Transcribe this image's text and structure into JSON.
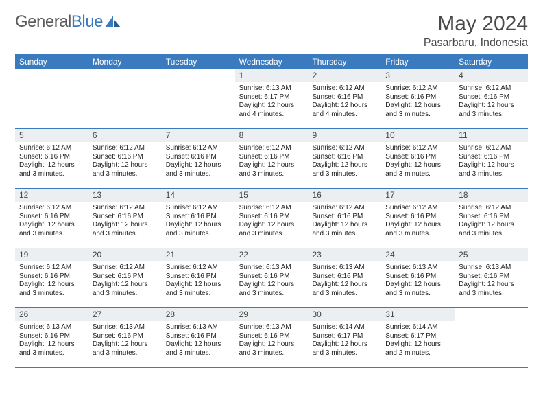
{
  "brand": {
    "textGray": "General",
    "textBlue": "Blue"
  },
  "colors": {
    "header_bg": "#3a7bbf",
    "daynum_bg": "#eceff1"
  },
  "title": "May 2024",
  "location": "Pasarbaru, Indonesia",
  "dow": [
    "Sunday",
    "Monday",
    "Tuesday",
    "Wednesday",
    "Thursday",
    "Friday",
    "Saturday"
  ],
  "weeks": [
    [
      {
        "n": "",
        "t": "",
        "empty": true
      },
      {
        "n": "",
        "t": "",
        "empty": true
      },
      {
        "n": "",
        "t": "",
        "empty": true
      },
      {
        "n": "1",
        "t": "Sunrise: 6:13 AM\nSunset: 6:17 PM\nDaylight: 12 hours and 4 minutes."
      },
      {
        "n": "2",
        "t": "Sunrise: 6:12 AM\nSunset: 6:16 PM\nDaylight: 12 hours and 4 minutes."
      },
      {
        "n": "3",
        "t": "Sunrise: 6:12 AM\nSunset: 6:16 PM\nDaylight: 12 hours and 3 minutes."
      },
      {
        "n": "4",
        "t": "Sunrise: 6:12 AM\nSunset: 6:16 PM\nDaylight: 12 hours and 3 minutes."
      }
    ],
    [
      {
        "n": "5",
        "t": "Sunrise: 6:12 AM\nSunset: 6:16 PM\nDaylight: 12 hours and 3 minutes."
      },
      {
        "n": "6",
        "t": "Sunrise: 6:12 AM\nSunset: 6:16 PM\nDaylight: 12 hours and 3 minutes."
      },
      {
        "n": "7",
        "t": "Sunrise: 6:12 AM\nSunset: 6:16 PM\nDaylight: 12 hours and 3 minutes."
      },
      {
        "n": "8",
        "t": "Sunrise: 6:12 AM\nSunset: 6:16 PM\nDaylight: 12 hours and 3 minutes."
      },
      {
        "n": "9",
        "t": "Sunrise: 6:12 AM\nSunset: 6:16 PM\nDaylight: 12 hours and 3 minutes."
      },
      {
        "n": "10",
        "t": "Sunrise: 6:12 AM\nSunset: 6:16 PM\nDaylight: 12 hours and 3 minutes."
      },
      {
        "n": "11",
        "t": "Sunrise: 6:12 AM\nSunset: 6:16 PM\nDaylight: 12 hours and 3 minutes."
      }
    ],
    [
      {
        "n": "12",
        "t": "Sunrise: 6:12 AM\nSunset: 6:16 PM\nDaylight: 12 hours and 3 minutes."
      },
      {
        "n": "13",
        "t": "Sunrise: 6:12 AM\nSunset: 6:16 PM\nDaylight: 12 hours and 3 minutes."
      },
      {
        "n": "14",
        "t": "Sunrise: 6:12 AM\nSunset: 6:16 PM\nDaylight: 12 hours and 3 minutes."
      },
      {
        "n": "15",
        "t": "Sunrise: 6:12 AM\nSunset: 6:16 PM\nDaylight: 12 hours and 3 minutes."
      },
      {
        "n": "16",
        "t": "Sunrise: 6:12 AM\nSunset: 6:16 PM\nDaylight: 12 hours and 3 minutes."
      },
      {
        "n": "17",
        "t": "Sunrise: 6:12 AM\nSunset: 6:16 PM\nDaylight: 12 hours and 3 minutes."
      },
      {
        "n": "18",
        "t": "Sunrise: 6:12 AM\nSunset: 6:16 PM\nDaylight: 12 hours and 3 minutes."
      }
    ],
    [
      {
        "n": "19",
        "t": "Sunrise: 6:12 AM\nSunset: 6:16 PM\nDaylight: 12 hours and 3 minutes."
      },
      {
        "n": "20",
        "t": "Sunrise: 6:12 AM\nSunset: 6:16 PM\nDaylight: 12 hours and 3 minutes."
      },
      {
        "n": "21",
        "t": "Sunrise: 6:12 AM\nSunset: 6:16 PM\nDaylight: 12 hours and 3 minutes."
      },
      {
        "n": "22",
        "t": "Sunrise: 6:13 AM\nSunset: 6:16 PM\nDaylight: 12 hours and 3 minutes."
      },
      {
        "n": "23",
        "t": "Sunrise: 6:13 AM\nSunset: 6:16 PM\nDaylight: 12 hours and 3 minutes."
      },
      {
        "n": "24",
        "t": "Sunrise: 6:13 AM\nSunset: 6:16 PM\nDaylight: 12 hours and 3 minutes."
      },
      {
        "n": "25",
        "t": "Sunrise: 6:13 AM\nSunset: 6:16 PM\nDaylight: 12 hours and 3 minutes."
      }
    ],
    [
      {
        "n": "26",
        "t": "Sunrise: 6:13 AM\nSunset: 6:16 PM\nDaylight: 12 hours and 3 minutes."
      },
      {
        "n": "27",
        "t": "Sunrise: 6:13 AM\nSunset: 6:16 PM\nDaylight: 12 hours and 3 minutes."
      },
      {
        "n": "28",
        "t": "Sunrise: 6:13 AM\nSunset: 6:16 PM\nDaylight: 12 hours and 3 minutes."
      },
      {
        "n": "29",
        "t": "Sunrise: 6:13 AM\nSunset: 6:16 PM\nDaylight: 12 hours and 3 minutes."
      },
      {
        "n": "30",
        "t": "Sunrise: 6:14 AM\nSunset: 6:17 PM\nDaylight: 12 hours and 3 minutes."
      },
      {
        "n": "31",
        "t": "Sunrise: 6:14 AM\nSunset: 6:17 PM\nDaylight: 12 hours and 2 minutes."
      },
      {
        "n": "",
        "t": "",
        "empty": true
      }
    ]
  ]
}
